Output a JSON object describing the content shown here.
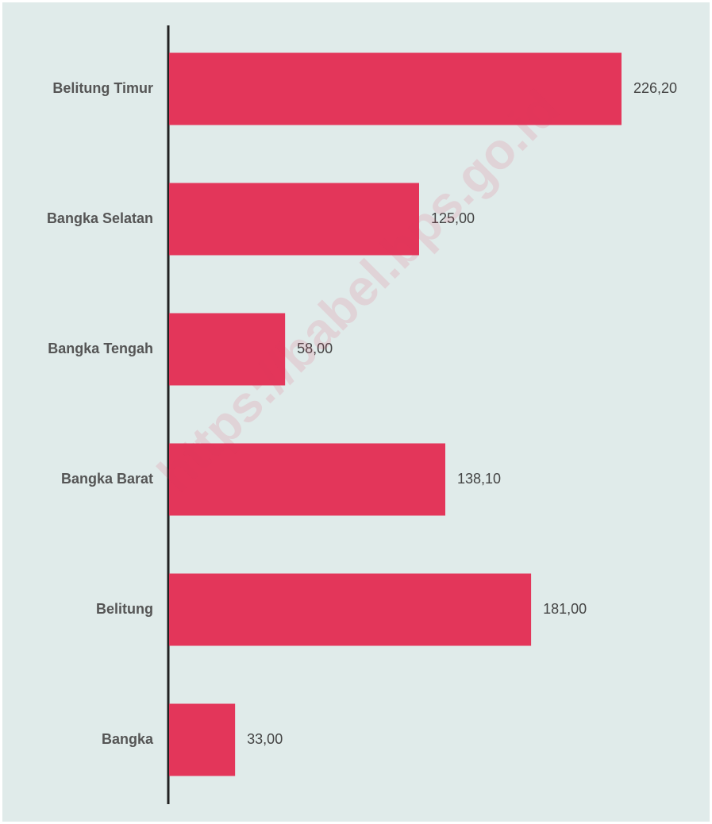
{
  "chart_data": {
    "type": "bar",
    "orientation": "horizontal",
    "categories": [
      "Belitung Timur",
      "Bangka Selatan",
      "Bangka Tengah",
      "Bangka Barat",
      "Belitung",
      "Bangka"
    ],
    "values": [
      226.2,
      125,
      58,
      138.1,
      181,
      33
    ],
    "value_labels": [
      "226,20",
      "125,00",
      "58,00",
      "138,10",
      "181,00",
      "33,00"
    ],
    "color": "#e3365a",
    "watermark": "https://babel.bps.go.id"
  }
}
